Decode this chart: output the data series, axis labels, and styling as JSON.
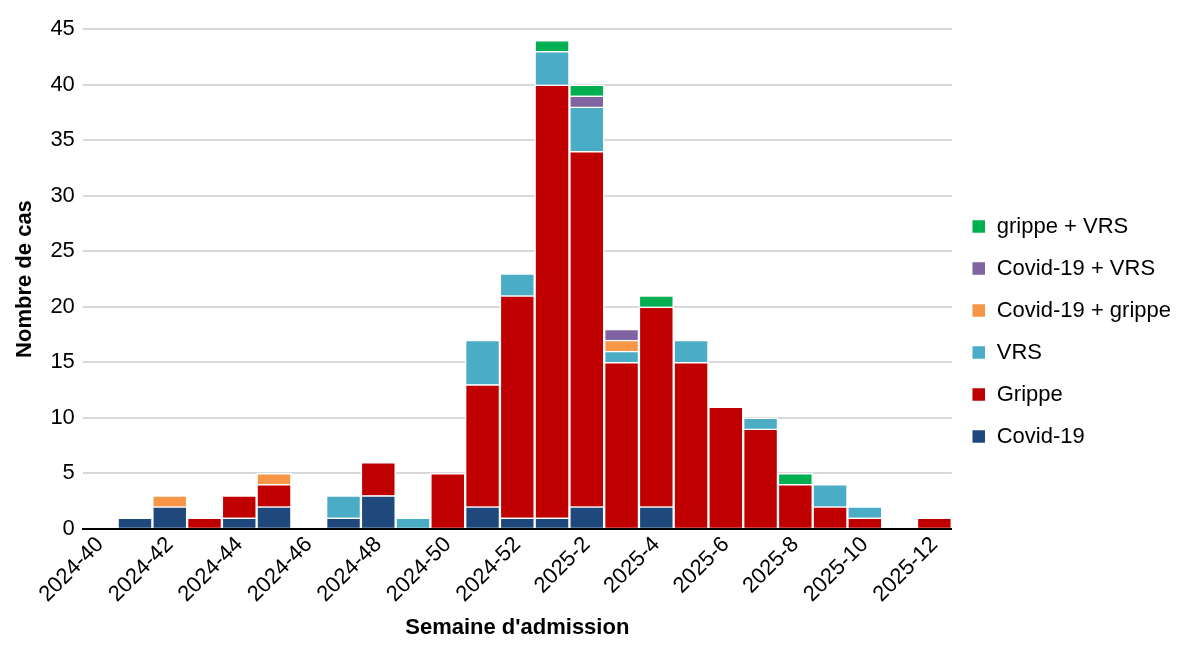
{
  "chart_data": {
    "type": "bar",
    "stacked": true,
    "xlabel": "Semaine d'admission",
    "ylabel": "Nombre de cas",
    "categories": [
      "2024-40",
      null,
      "2024-42",
      null,
      "2024-44",
      null,
      "2024-46",
      null,
      "2024-48",
      null,
      "2024-50",
      null,
      "2024-52",
      null,
      "2025-2",
      null,
      "2025-4",
      null,
      "2025-6",
      null,
      "2025-8",
      null,
      "2025-10",
      null,
      "2025-12"
    ],
    "series": [
      {
        "name": "Covid-19",
        "color": "#1f497d",
        "values": [
          0,
          1,
          2,
          0,
          1,
          2,
          0,
          1,
          3,
          0,
          0,
          2,
          1,
          1,
          2,
          0,
          2,
          0,
          0,
          0,
          0,
          0,
          0,
          0,
          0
        ]
      },
      {
        "name": "Grippe",
        "color": "#c00000",
        "values": [
          0,
          0,
          0,
          1,
          2,
          2,
          0,
          0,
          3,
          0,
          5,
          11,
          20,
          39,
          32,
          15,
          18,
          15,
          11,
          9,
          4,
          2,
          1,
          0,
          1
        ]
      },
      {
        "name": "VRS",
        "color": "#4bacc6",
        "values": [
          0,
          0,
          0,
          0,
          0,
          0,
          0,
          2,
          0,
          1,
          0,
          4,
          2,
          3,
          4,
          1,
          0,
          2,
          0,
          1,
          0,
          2,
          1,
          0,
          0
        ]
      },
      {
        "name": "Covid-19 + grippe",
        "color": "#f79646",
        "values": [
          0,
          0,
          1,
          0,
          0,
          1,
          0,
          0,
          0,
          0,
          0,
          0,
          0,
          0,
          0,
          1,
          0,
          0,
          0,
          0,
          0,
          0,
          0,
          0,
          0
        ]
      },
      {
        "name": "Covid-19 + VRS",
        "color": "#8064a2",
        "values": [
          0,
          0,
          0,
          0,
          0,
          0,
          0,
          0,
          0,
          0,
          0,
          0,
          0,
          0,
          1,
          1,
          0,
          0,
          0,
          0,
          0,
          0,
          0,
          0,
          0
        ]
      },
      {
        "name": "grippe + VRS",
        "color": "#00b050",
        "values": [
          0,
          0,
          0,
          0,
          0,
          0,
          0,
          0,
          0,
          0,
          0,
          0,
          0,
          1,
          1,
          0,
          1,
          0,
          0,
          0,
          1,
          0,
          0,
          0,
          0
        ]
      }
    ],
    "ylim": [
      0,
      45
    ],
    "yticks": [
      0,
      5,
      10,
      15,
      20,
      25,
      30,
      35,
      40,
      45
    ],
    "grid": "y",
    "legend": "right"
  }
}
